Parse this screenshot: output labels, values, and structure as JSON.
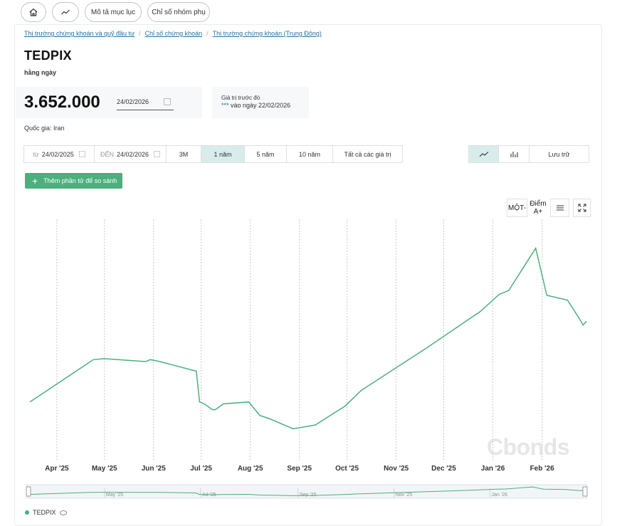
{
  "topnav": {
    "home_icon": "home-icon",
    "chart_icon": "line-chart-icon",
    "desc_label": "Mô tả mục lục",
    "sub_label": "Chỉ số nhóm phụ"
  },
  "breadcrumb": [
    "Thị trường chứng khoán và quỹ đầu tư",
    "Chỉ số chứng khoán",
    "Thị trường chứng khoán (Trung Đông)"
  ],
  "header": {
    "title": "TEDPIX",
    "frequency": "hằng ngày"
  },
  "value": {
    "current": "3.652.000",
    "date": "24/02/2026"
  },
  "previous": {
    "label": "Giá trị trước đó",
    "stars": "***",
    "text": " vào ngày 22/02/2026"
  },
  "country": "Quốc gia: Iran",
  "range": {
    "from_label": "từ",
    "from": "24/02/2025",
    "to_label": "ĐẾN",
    "to": "24/02/2026",
    "periods": [
      "3M",
      "1 năm",
      "5 năm",
      "10 năm",
      "Tất cả các giá trị"
    ],
    "active_period": "1 năm"
  },
  "view": {
    "line_icon": "line-chart-icon",
    "bar_icon": "bar-chart-icon",
    "archive_label": "Lưu trữ"
  },
  "add_button": "Thêm phần tử để so sánh",
  "tools": {
    "scale_label": "MỘT-",
    "points_label": "Điểm A+",
    "menu_icon": "menu-icon",
    "expand_icon": "expand-icon"
  },
  "watermark": "Cbonds",
  "legend": {
    "series": "TEDPIX",
    "eye_icon": "eye-icon"
  },
  "colors": {
    "series": "#4caf7d",
    "active_bg": "#d9ecec",
    "link": "#2a6f9c"
  },
  "chart_data": {
    "type": "line",
    "x_ticks": [
      "Apr '25",
      "May '25",
      "Jun '25",
      "Jul '25",
      "Aug '25",
      "Sep '25",
      "Oct '25",
      "Nov '25",
      "Dec '25",
      "Jan '26",
      "Feb '26"
    ],
    "navigator_ticks": [
      "May '25",
      "Jul '25",
      "Sep '25",
      "Nov '25",
      "Jan '26"
    ],
    "series": [
      {
        "name": "TEDPIX",
        "points": [
          [
            "2025-03-15",
            0.19
          ],
          [
            "2025-04-24",
            0.41
          ],
          [
            "2025-05-01",
            0.415
          ],
          [
            "2025-05-27",
            0.4
          ],
          [
            "2025-05-30",
            0.41
          ],
          [
            "2025-06-05",
            0.4
          ],
          [
            "2025-06-28",
            0.35
          ],
          [
            "2025-06-30",
            0.19
          ],
          [
            "2025-07-03",
            0.18
          ],
          [
            "2025-07-08",
            0.15
          ],
          [
            "2025-07-10",
            0.15
          ],
          [
            "2025-07-15",
            0.18
          ],
          [
            "2025-07-31",
            0.19
          ],
          [
            "2025-08-07",
            0.12
          ],
          [
            "2025-08-14",
            0.1
          ],
          [
            "2025-08-28",
            0.05
          ],
          [
            "2025-09-11",
            0.07
          ],
          [
            "2025-09-30",
            0.17
          ],
          [
            "2025-10-10",
            0.25
          ],
          [
            "2025-11-20",
            0.47
          ],
          [
            "2025-12-15",
            0.61
          ],
          [
            "2025-12-24",
            0.66
          ],
          [
            "2026-01-05",
            0.75
          ],
          [
            "2026-01-08",
            0.76
          ],
          [
            "2026-01-11",
            0.77
          ],
          [
            "2026-01-28",
            0.99
          ],
          [
            "2026-02-04",
            0.745
          ],
          [
            "2026-02-17",
            0.72
          ],
          [
            "2026-02-24",
            0.63
          ],
          [
            "2026-02-27",
            0.59
          ],
          [
            "2026-02-29",
            0.61
          ]
        ]
      }
    ]
  }
}
